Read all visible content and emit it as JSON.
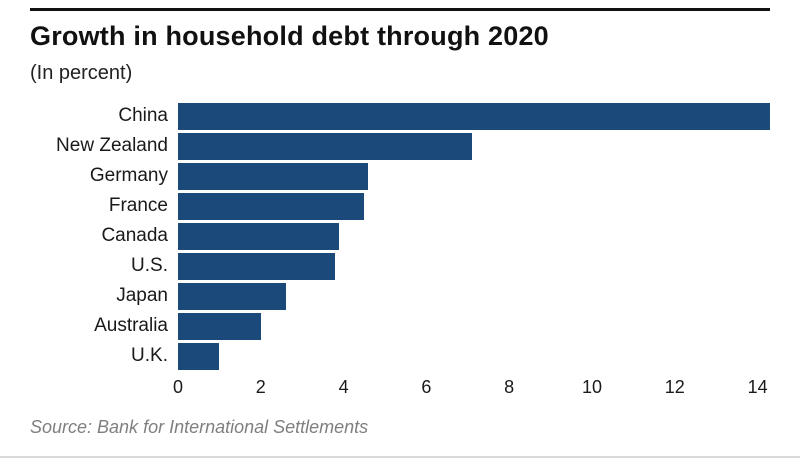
{
  "header": {
    "title": "Growth in household debt through 2020",
    "subtitle": "(In percent)"
  },
  "footer": {
    "source": "Source: Bank for International Settlements"
  },
  "colors": {
    "bar": "#1b4a7a",
    "top_rule": "#111111",
    "source_text": "#7f7f7f"
  },
  "chart_data": {
    "type": "bar",
    "orientation": "horizontal",
    "title": "Growth in household debt through 2020",
    "subtitle": "(In percent)",
    "xlabel": "",
    "ylabel": "",
    "categories": [
      "China",
      "New Zealand",
      "Germany",
      "France",
      "Canada",
      "U.S.",
      "Japan",
      "Australia",
      "U.K."
    ],
    "values": [
      14.3,
      7.1,
      4.6,
      4.5,
      3.9,
      3.8,
      2.6,
      2.0,
      1.0
    ],
    "xlim": [
      0,
      14.3
    ],
    "xticks": [
      0,
      2,
      4,
      6,
      8,
      10,
      12,
      14
    ],
    "bar_color": "#1b4a7a",
    "grid": false,
    "legend": false,
    "source": "Source: Bank for International Settlements"
  }
}
